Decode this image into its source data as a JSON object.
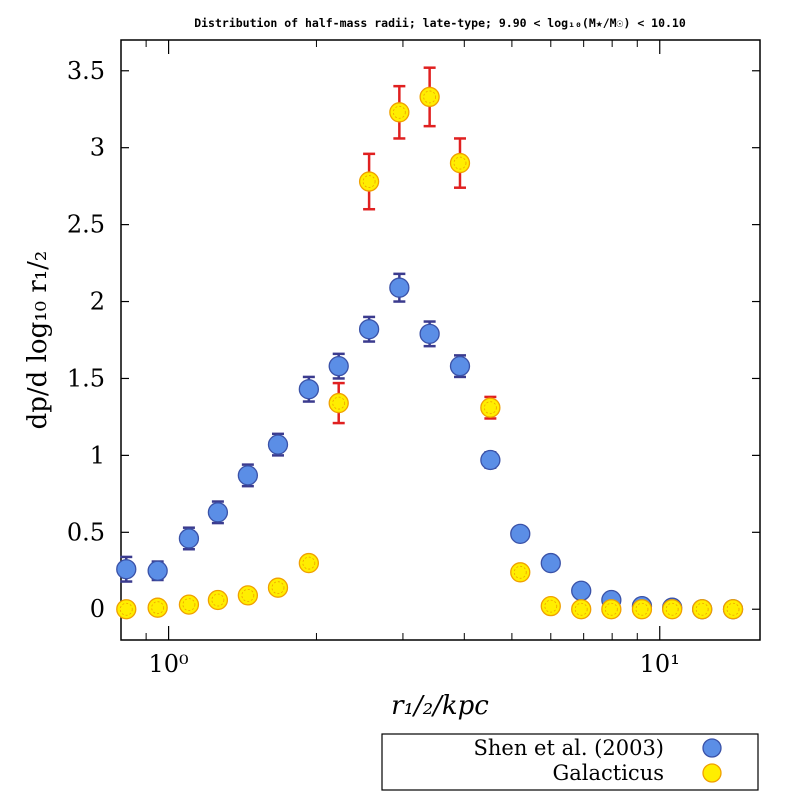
{
  "chart_data": {
    "type": "scatter",
    "title": "Distribution of half-mass radii; late-type; 9.90 < log₁₀(M★/M☉) < 10.10",
    "xlabel": "r₁/₂/kpc",
    "ylabel": "dp/d log₁₀ r₁/₂",
    "xscale": "log",
    "xlim": [
      0.8,
      16.0
    ],
    "ylim": [
      -0.2,
      3.7
    ],
    "x_ticks": [
      {
        "value": 1,
        "label": "10⁰"
      },
      {
        "value": 10,
        "label": "10¹"
      }
    ],
    "y_ticks": [
      {
        "value": 0,
        "label": "0"
      },
      {
        "value": 0.5,
        "label": "0.5"
      },
      {
        "value": 1,
        "label": "1"
      },
      {
        "value": 1.5,
        "label": "1.5"
      },
      {
        "value": 2,
        "label": "2"
      },
      {
        "value": 2.5,
        "label": "2.5"
      },
      {
        "value": 3,
        "label": "3"
      },
      {
        "value": 3.5,
        "label": "3.5"
      }
    ],
    "grid": false,
    "legend_position": "below-right",
    "series": [
      {
        "name": "Shen et al. (2003)",
        "fill": "#5b8ee6",
        "stroke": "#3a52a8",
        "error_color": "#3b3b8e",
        "points": [
          {
            "x": 0.82,
            "y": 0.26,
            "err": 0.08
          },
          {
            "x": 0.95,
            "y": 0.25,
            "err": 0.06
          },
          {
            "x": 1.1,
            "y": 0.46,
            "err": 0.07
          },
          {
            "x": 1.26,
            "y": 0.63,
            "err": 0.07
          },
          {
            "x": 1.45,
            "y": 0.87,
            "err": 0.07
          },
          {
            "x": 1.67,
            "y": 1.07,
            "err": 0.07
          },
          {
            "x": 1.93,
            "y": 1.43,
            "err": 0.08
          },
          {
            "x": 2.22,
            "y": 1.58,
            "err": 0.08
          },
          {
            "x": 2.56,
            "y": 1.82,
            "err": 0.08
          },
          {
            "x": 2.95,
            "y": 2.09,
            "err": 0.09
          },
          {
            "x": 3.4,
            "y": 1.79,
            "err": 0.08
          },
          {
            "x": 3.92,
            "y": 1.58,
            "err": 0.07
          },
          {
            "x": 4.52,
            "y": 0.97,
            "err": 0.05
          },
          {
            "x": 5.2,
            "y": 0.49,
            "err": 0.0
          },
          {
            "x": 6.0,
            "y": 0.3,
            "err": 0.0
          },
          {
            "x": 6.92,
            "y": 0.12,
            "err": 0.0
          },
          {
            "x": 7.97,
            "y": 0.06,
            "err": 0.0
          },
          {
            "x": 9.2,
            "y": 0.02,
            "err": 0.0
          },
          {
            "x": 10.6,
            "y": 0.01,
            "err": 0.0
          },
          {
            "x": 12.2,
            "y": 0.0,
            "err": 0.0
          },
          {
            "x": 14.1,
            "y": 0.0,
            "err": 0.0
          }
        ]
      },
      {
        "name": "Galacticus",
        "fill": "#ffee00",
        "stroke": "#f0a000",
        "error_color": "#e02020",
        "points": [
          {
            "x": 0.82,
            "y": 0.0,
            "err": 0.0
          },
          {
            "x": 0.95,
            "y": 0.01,
            "err": 0.0
          },
          {
            "x": 1.1,
            "y": 0.03,
            "err": 0.0
          },
          {
            "x": 1.26,
            "y": 0.06,
            "err": 0.0
          },
          {
            "x": 1.45,
            "y": 0.09,
            "err": 0.0
          },
          {
            "x": 1.67,
            "y": 0.14,
            "err": 0.0
          },
          {
            "x": 1.93,
            "y": 0.3,
            "err": 0.0
          },
          {
            "x": 2.22,
            "y": 1.34,
            "err": 0.13
          },
          {
            "x": 2.56,
            "y": 2.78,
            "err": 0.18
          },
          {
            "x": 2.95,
            "y": 3.23,
            "err": 0.17
          },
          {
            "x": 3.4,
            "y": 3.33,
            "err": 0.19
          },
          {
            "x": 3.92,
            "y": 2.9,
            "err": 0.16
          },
          {
            "x": 4.52,
            "y": 1.31,
            "err": 0.07
          },
          {
            "x": 5.2,
            "y": 0.24,
            "err": 0.0
          },
          {
            "x": 6.0,
            "y": 0.02,
            "err": 0.0
          },
          {
            "x": 6.92,
            "y": 0.0,
            "err": 0.0
          },
          {
            "x": 7.97,
            "y": 0.0,
            "err": 0.0
          },
          {
            "x": 9.2,
            "y": 0.0,
            "err": 0.0
          },
          {
            "x": 10.6,
            "y": 0.0,
            "err": 0.0
          },
          {
            "x": 12.2,
            "y": 0.0,
            "err": 0.0
          },
          {
            "x": 14.1,
            "y": 0.0,
            "err": 0.0
          }
        ]
      }
    ]
  }
}
